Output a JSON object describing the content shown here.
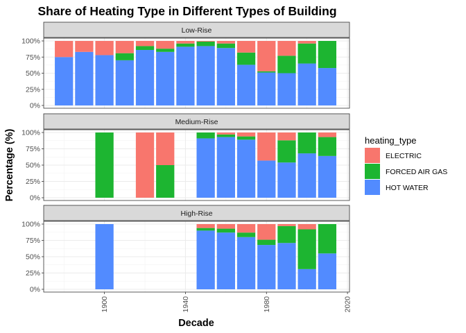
{
  "chart_data": {
    "type": "bar",
    "stacked": true,
    "title": "Share of Heating Type in Different Types of Building",
    "xlabel": "Decade",
    "ylabel": "Percentage (%)",
    "xlim": [
      1870,
      2021
    ],
    "x_ticks": [
      1900,
      1940,
      1980,
      2020
    ],
    "ylim": [
      0,
      1
    ],
    "y_ticks": [
      0,
      0.25,
      0.5,
      0.75,
      1.0
    ],
    "y_tick_labels": [
      "0%",
      "25%",
      "50%",
      "75%",
      "100%"
    ],
    "grid": true,
    "legend": {
      "title": "heating_type",
      "position": "right",
      "items": [
        {
          "label": "ELECTRIC",
          "color": "#F8766D"
        },
        {
          "label": "FORCED AIR GAS",
          "color": "#1DB531"
        },
        {
          "label": "HOT WATER",
          "color": "#528BFF"
        }
      ]
    },
    "stack_order_bottom_to_top": [
      "HOT WATER",
      "FORCED AIR GAS",
      "ELECTRIC"
    ],
    "facets": [
      {
        "label": "Low-Rise",
        "bars": [
          {
            "x": 1880,
            "HOT WATER": 0.75,
            "FORCED AIR GAS": 0.0,
            "ELECTRIC": 0.25
          },
          {
            "x": 1890,
            "HOT WATER": 0.83,
            "FORCED AIR GAS": 0.0,
            "ELECTRIC": 0.17
          },
          {
            "x": 1900,
            "HOT WATER": 0.78,
            "FORCED AIR GAS": 0.0,
            "ELECTRIC": 0.22
          },
          {
            "x": 1910,
            "HOT WATER": 0.7,
            "FORCED AIR GAS": 0.11,
            "ELECTRIC": 0.19
          },
          {
            "x": 1920,
            "HOT WATER": 0.86,
            "FORCED AIR GAS": 0.06,
            "ELECTRIC": 0.08
          },
          {
            "x": 1930,
            "HOT WATER": 0.83,
            "FORCED AIR GAS": 0.05,
            "ELECTRIC": 0.12
          },
          {
            "x": 1940,
            "HOT WATER": 0.91,
            "FORCED AIR GAS": 0.05,
            "ELECTRIC": 0.04
          },
          {
            "x": 1950,
            "HOT WATER": 0.92,
            "FORCED AIR GAS": 0.07,
            "ELECTRIC": 0.01
          },
          {
            "x": 1960,
            "HOT WATER": 0.89,
            "FORCED AIR GAS": 0.07,
            "ELECTRIC": 0.04
          },
          {
            "x": 1970,
            "HOT WATER": 0.63,
            "FORCED AIR GAS": 0.19,
            "ELECTRIC": 0.18
          },
          {
            "x": 1980,
            "HOT WATER": 0.51,
            "FORCED AIR GAS": 0.02,
            "ELECTRIC": 0.47
          },
          {
            "x": 1990,
            "HOT WATER": 0.5,
            "FORCED AIR GAS": 0.27,
            "ELECTRIC": 0.23
          },
          {
            "x": 2000,
            "HOT WATER": 0.65,
            "FORCED AIR GAS": 0.31,
            "ELECTRIC": 0.04
          },
          {
            "x": 2010,
            "HOT WATER": 0.58,
            "FORCED AIR GAS": 0.42,
            "ELECTRIC": 0.0
          }
        ]
      },
      {
        "label": "Medium-Rise",
        "bars": [
          {
            "x": 1900,
            "HOT WATER": 0.0,
            "FORCED AIR GAS": 1.0,
            "ELECTRIC": 0.0
          },
          {
            "x": 1920,
            "HOT WATER": 0.0,
            "FORCED AIR GAS": 0.0,
            "ELECTRIC": 1.0
          },
          {
            "x": 1930,
            "HOT WATER": 0.0,
            "FORCED AIR GAS": 0.5,
            "ELECTRIC": 0.5
          },
          {
            "x": 1950,
            "HOT WATER": 0.91,
            "FORCED AIR GAS": 0.09,
            "ELECTRIC": 0.0
          },
          {
            "x": 1960,
            "HOT WATER": 0.93,
            "FORCED AIR GAS": 0.04,
            "ELECTRIC": 0.03
          },
          {
            "x": 1970,
            "HOT WATER": 0.89,
            "FORCED AIR GAS": 0.05,
            "ELECTRIC": 0.06
          },
          {
            "x": 1980,
            "HOT WATER": 0.57,
            "FORCED AIR GAS": 0.0,
            "ELECTRIC": 0.43
          },
          {
            "x": 1990,
            "HOT WATER": 0.54,
            "FORCED AIR GAS": 0.34,
            "ELECTRIC": 0.12
          },
          {
            "x": 2000,
            "HOT WATER": 0.68,
            "FORCED AIR GAS": 0.32,
            "ELECTRIC": 0.0
          },
          {
            "x": 2010,
            "HOT WATER": 0.64,
            "FORCED AIR GAS": 0.29,
            "ELECTRIC": 0.07
          }
        ]
      },
      {
        "label": "High-Rise",
        "bars": [
          {
            "x": 1900,
            "HOT WATER": 1.0,
            "FORCED AIR GAS": 0.0,
            "ELECTRIC": 0.0
          },
          {
            "x": 1950,
            "HOT WATER": 0.9,
            "FORCED AIR GAS": 0.04,
            "ELECTRIC": 0.06
          },
          {
            "x": 1960,
            "HOT WATER": 0.87,
            "FORCED AIR GAS": 0.06,
            "ELECTRIC": 0.07
          },
          {
            "x": 1970,
            "HOT WATER": 0.8,
            "FORCED AIR GAS": 0.07,
            "ELECTRIC": 0.13
          },
          {
            "x": 1980,
            "HOT WATER": 0.68,
            "FORCED AIR GAS": 0.08,
            "ELECTRIC": 0.24
          },
          {
            "x": 1990,
            "HOT WATER": 0.71,
            "FORCED AIR GAS": 0.26,
            "ELECTRIC": 0.03
          },
          {
            "x": 2000,
            "HOT WATER": 0.31,
            "FORCED AIR GAS": 0.61,
            "ELECTRIC": 0.08
          },
          {
            "x": 2010,
            "HOT WATER": 0.55,
            "FORCED AIR GAS": 0.45,
            "ELECTRIC": 0.0
          }
        ]
      }
    ]
  }
}
